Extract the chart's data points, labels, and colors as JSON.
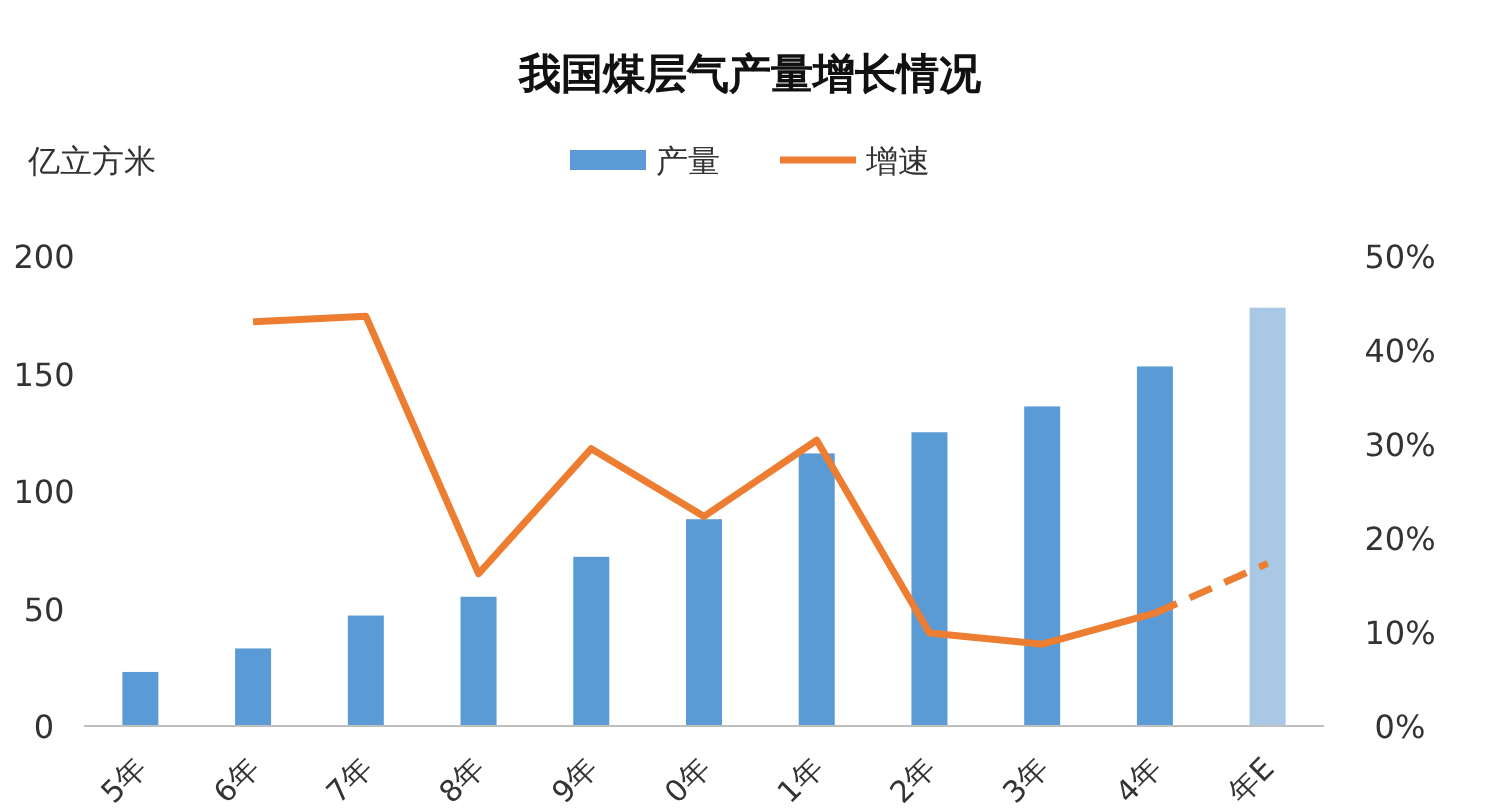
{
  "chart_data": {
    "type": "bar",
    "title": "我国煤层气产量增长情况",
    "ylabel": "亿立方米",
    "categories": [
      "5年",
      "6年",
      "7年",
      "8年",
      "9年",
      "0年",
      "1年",
      "2年",
      "3年",
      "4年",
      "年E"
    ],
    "series": [
      {
        "name": "产量",
        "color": "#5b9bd5",
        "colors": [
          "#5b9bd5",
          "#5b9bd5",
          "#5b9bd5",
          "#5b9bd5",
          "#5b9bd5",
          "#5b9bd5",
          "#5b9bd5",
          "#5b9bd5",
          "#5b9bd5",
          "#5b9bd5",
          "#a8c8e6"
        ],
        "values": [
          23,
          33,
          47,
          55,
          72,
          88,
          116,
          125,
          136,
          153,
          178
        ]
      },
      {
        "name": "增速",
        "type": "line",
        "axis": "y2",
        "color": "#ed7d31",
        "line_style": "solid",
        "values": [
          null,
          43,
          43.6,
          16.2,
          29.5,
          22.3,
          30.4,
          9.9,
          8.7,
          12,
          null
        ]
      },
      {
        "type": "line",
        "axis": "y2",
        "color": "#ed7d31",
        "line_style": "dashed",
        "values": [
          null,
          null,
          null,
          null,
          null,
          null,
          null,
          null,
          null,
          12,
          17.3
        ]
      }
    ],
    "ylim": [
      0,
      200
    ],
    "yticks": [
      0,
      50,
      100,
      150,
      200
    ],
    "y2lim": [
      0,
      50
    ],
    "y2ticks": [
      {
        "value": 0,
        "label": "0%"
      },
      {
        "value": 10,
        "label": "10%"
      },
      {
        "value": 20,
        "label": "20%"
      },
      {
        "value": 30,
        "label": "30%"
      },
      {
        "value": 40,
        "label": "40%"
      },
      {
        "value": 50,
        "label": "50%"
      }
    ],
    "legend": "top"
  }
}
